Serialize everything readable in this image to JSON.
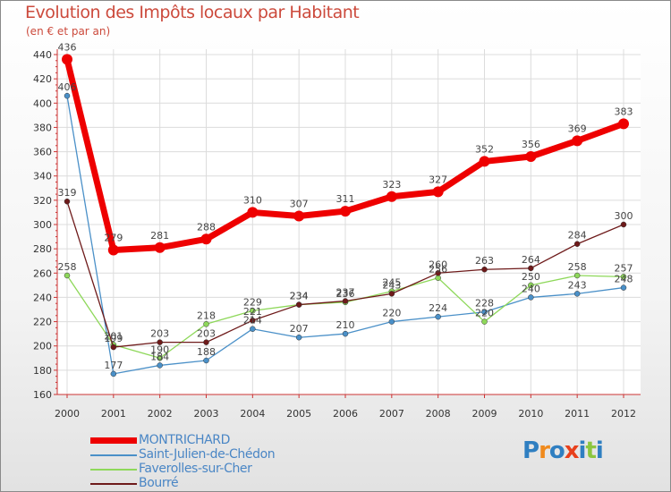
{
  "title": "Evolution des Impôts locaux par Habitant",
  "subtitle": "(en € et par an)",
  "logo": {
    "text": "Proxiti",
    "colors": [
      "#2f7fc1",
      "#f08a1c",
      "#2f7fc1",
      "#e8401c",
      "#2f7fc1",
      "#8cc63f",
      "#2f7fc1"
    ]
  },
  "chart_data": {
    "type": "line",
    "x": [
      "2000",
      "2001",
      "2002",
      "2003",
      "2004",
      "2005",
      "2006",
      "2007",
      "2008",
      "2009",
      "2010",
      "2011",
      "2012"
    ],
    "ylim": [
      160,
      440
    ],
    "yticks": [
      160,
      180,
      200,
      220,
      240,
      260,
      280,
      300,
      320,
      340,
      360,
      380,
      400,
      420,
      440
    ],
    "grid": true,
    "legend_position": "bottom-left",
    "series": [
      {
        "name": "MONTRICHARD",
        "color": "#ee0000",
        "values": [
          436,
          279,
          281,
          288,
          310,
          307,
          311,
          323,
          327,
          352,
          356,
          369,
          383
        ]
      },
      {
        "name": "Saint-Julien-de-Chédon",
        "color": "#4a90c8",
        "values": [
          406,
          177,
          184,
          188,
          214,
          207,
          210,
          220,
          224,
          228,
          240,
          243,
          248
        ]
      },
      {
        "name": "Faverolles-sur-Cher",
        "color": "#8ed85a",
        "values": [
          258,
          201,
          190,
          218,
          229,
          234,
          236,
          245,
          256,
          220,
          250,
          258,
          257
        ]
      },
      {
        "name": "Bourré",
        "color": "#6e1a1a",
        "values": [
          319,
          199,
          203,
          203,
          221,
          234,
          237,
          243,
          260,
          263,
          264,
          284,
          300
        ]
      }
    ],
    "data_labels": [
      [
        "436",
        "279",
        "281",
        "288",
        "310",
        "307",
        "311",
        "323",
        "327",
        "352",
        "356",
        "369",
        "383"
      ],
      [
        "406",
        "177",
        "184",
        "188",
        "214",
        "207",
        "210",
        "220",
        "224",
        "228",
        "240",
        "243",
        "248"
      ],
      [
        "258",
        "201",
        "190",
        "218",
        "229",
        "234",
        "236",
        "245",
        "256",
        "220",
        "250",
        "258",
        "257"
      ],
      [
        "319",
        "199",
        "203",
        "203",
        "221",
        "234",
        "237",
        "243",
        "260",
        "263",
        "264",
        "284",
        "300"
      ]
    ]
  }
}
